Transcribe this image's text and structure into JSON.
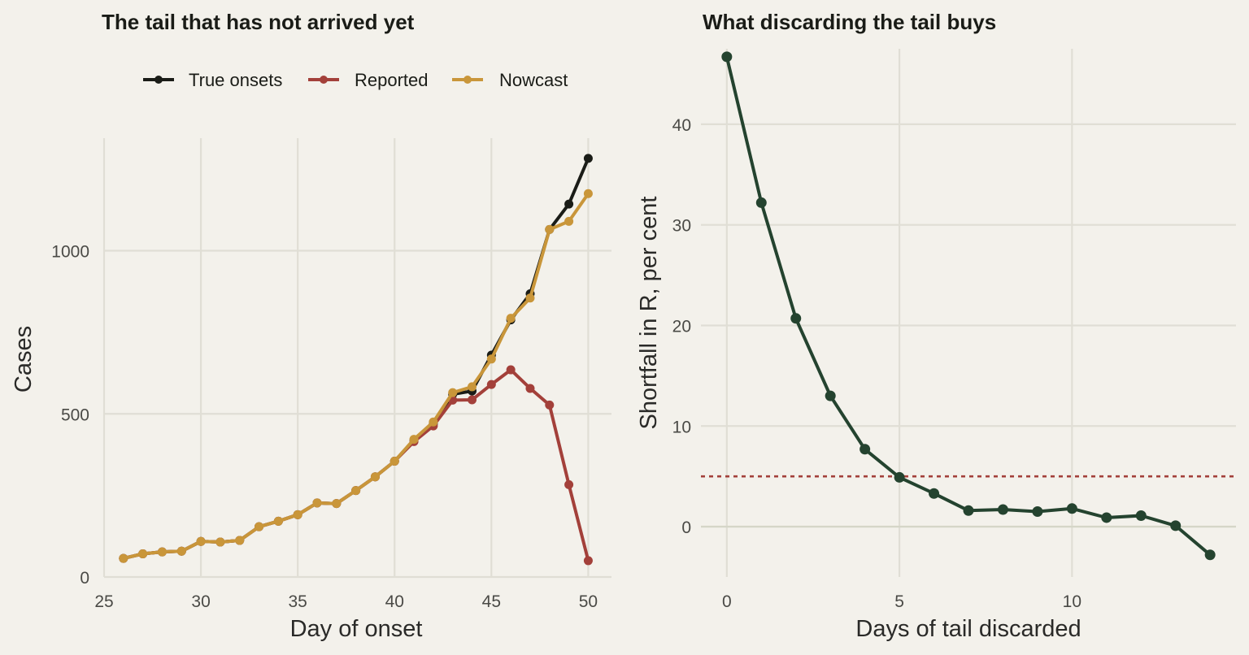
{
  "colors": {
    "true_onsets": "#1a1c17",
    "reported": "#a3403a",
    "nowcast": "#c9963a",
    "shortfall": "#24432f",
    "threshold": "#a3403a"
  },
  "chart_data": [
    {
      "type": "line",
      "title": "The tail that has not arrived yet",
      "xlabel": "Day of onset",
      "ylabel": "Cases",
      "xlim": [
        25,
        51.2
      ],
      "ylim": [
        0,
        1345
      ],
      "xticks": [
        25,
        30,
        35,
        40,
        45,
        50
      ],
      "yticks": [
        0,
        500,
        1000
      ],
      "grid": true,
      "legend_position": "top",
      "x": [
        26,
        27,
        28,
        29,
        30,
        31,
        32,
        33,
        34,
        35,
        36,
        37,
        38,
        39,
        40,
        41,
        42,
        43,
        44,
        45,
        46,
        47,
        48,
        49,
        50
      ],
      "series": [
        {
          "name": "True onsets",
          "values": [
            57,
            71,
            77,
            79,
            109,
            107,
            112,
            154,
            171,
            191,
            227,
            225,
            265,
            307,
            355,
            420,
            470,
            560,
            570,
            680,
            788,
            868,
            1065,
            1143,
            1283
          ]
        },
        {
          "name": "Reported",
          "values": [
            57,
            71,
            77,
            79,
            109,
            107,
            112,
            154,
            171,
            191,
            227,
            225,
            265,
            307,
            355,
            415,
            463,
            542,
            543,
            590,
            635,
            578,
            527,
            283,
            50
          ]
        },
        {
          "name": "Nowcast",
          "values": [
            57,
            71,
            77,
            79,
            109,
            107,
            112,
            154,
            171,
            191,
            227,
            225,
            265,
            307,
            355,
            422,
            475,
            565,
            583,
            668,
            793,
            855,
            1065,
            1090,
            1175
          ]
        }
      ]
    },
    {
      "type": "line",
      "title": "What discarding the tail buys",
      "xlabel": "Days of tail discarded",
      "ylabel": "Shortfall in R, per cent",
      "xlim": [
        -0.75,
        14.75
      ],
      "ylim": [
        -5,
        47.5
      ],
      "xticks": [
        0,
        5,
        10
      ],
      "yticks": [
        0,
        10,
        20,
        30,
        40
      ],
      "grid": true,
      "reference_lines": {
        "zero": 0,
        "threshold": 5
      },
      "x": [
        0,
        1,
        2,
        3,
        4,
        5,
        6,
        7,
        8,
        9,
        10,
        11,
        12,
        13,
        14
      ],
      "values": [
        46.7,
        32.2,
        20.7,
        13.0,
        7.7,
        4.9,
        3.3,
        1.6,
        1.7,
        1.5,
        1.8,
        0.9,
        1.1,
        0.1,
        -2.8
      ]
    }
  ]
}
